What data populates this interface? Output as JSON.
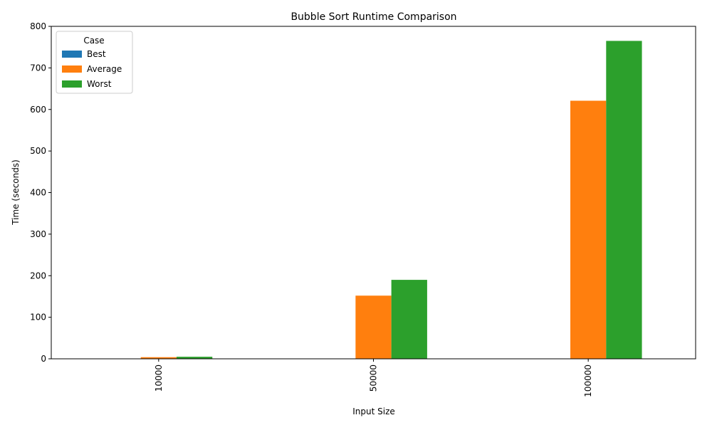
{
  "chart_data": {
    "type": "bar",
    "title": "Bubble Sort Runtime Comparison",
    "xlabel": "Input Size",
    "ylabel": "Time (seconds)",
    "categories": [
      "10000",
      "50000",
      "100000"
    ],
    "series": [
      {
        "name": "Best",
        "values": [
          0.0,
          0.0,
          0.0
        ],
        "color": "#1f77b4"
      },
      {
        "name": "Average",
        "values": [
          3.9,
          152.0,
          621.0
        ],
        "color": "#ff7f0e"
      },
      {
        "name": "Worst",
        "values": [
          4.9,
          190.0,
          765.0
        ],
        "color": "#2ca02c"
      }
    ],
    "ylim": [
      0,
      800
    ],
    "yticks": [
      0,
      100,
      200,
      300,
      400,
      500,
      600,
      700,
      800
    ],
    "grid": false,
    "legend": {
      "title": "Case",
      "placement": "top-left"
    }
  }
}
